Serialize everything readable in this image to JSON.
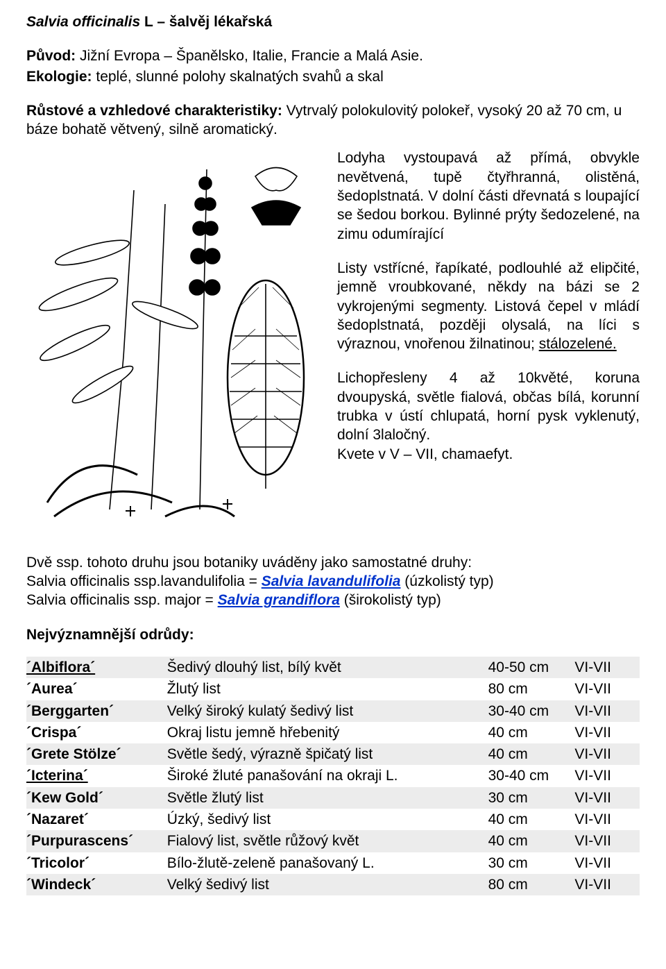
{
  "title": {
    "latin": "Salvia officinalis",
    "authority": "L",
    "czech": "šalvěj lékařská"
  },
  "origin": {
    "label": "Původ:",
    "text": "Jižní Evropa – Španělsko, Italie, Francie a Malá Asie."
  },
  "ecology": {
    "label": "Ekologie:",
    "text": "teplé, slunné polohy skalnatých svahů a skal"
  },
  "growth": {
    "label": "Růstové a vzhledové charakteristiky:",
    "text": "Vytrvalý polokulovitý polokeř, vysoký 20 až 70 cm, u báze bohatě větvený, silně aromatický."
  },
  "description": {
    "p1": "Lodyha vystoupavá až přímá, obvykle nevětvená, tupě čtyřhranná, olistěná, šedoplstnatá. V dolní části dřevnatá s loupající se šedou borkou. Bylinné prýty šedozelené, na zimu odumírající",
    "p2a": "Listy vstřícné, řapíkaté, podlouhlé až elipčité, jemně vroubkované, někdy na bázi se 2 vykrojenými segmenty. Listová čepel v mládí šedoplstnatá, později olysalá, na líci s výraznou, vnořenou žilnatinou; ",
    "p2b": "stálozelené.",
    "p3": "Lichopřesleny 4 až 10květé, koruna dvoupyská, světle fialová, občas bílá, korunní trubka v ústí chlupatá, horní pysk vyklenutý, dolní 3laločný.",
    "p4": "Kvete v V – VII, chamaefyt."
  },
  "ssp": {
    "intro": "Dvě ssp. tohoto druhu jsou botaniky uváděny jako samostatné druhy:",
    "line1a": "Salvia officinalis ssp.lavandulifolia = ",
    "line1link": "Salvia lavandulifolia",
    "line1b": " (úzkolistý typ)",
    "line2a": "Salvia officinalis ssp. major = ",
    "line2link": "Salvia grandiflora",
    "line2b": " (širokolistý typ)"
  },
  "cultivars_label": "Nejvýznamnější odrůdy:",
  "table": {
    "rows": [
      {
        "name": "´Albiflora´",
        "link": true,
        "desc": "Šedivý dlouhý list, bílý květ",
        "height": "40-50 cm",
        "bloom": "VI-VII",
        "shade": true
      },
      {
        "name": "´Aurea´",
        "link": false,
        "desc": "Žlutý list",
        "height": "80 cm",
        "bloom": "VI-VII",
        "shade": false
      },
      {
        "name": "´Berggarten´",
        "link": false,
        "desc": "Velký široký kulatý šedivý list",
        "height": "30-40 cm",
        "bloom": "VI-VII",
        "shade": true
      },
      {
        "name": "´Crispa´",
        "link": false,
        "desc": "Okraj listu jemně hřebenitý",
        "height": "40 cm",
        "bloom": "VI-VII",
        "shade": false
      },
      {
        "name": "´Grete Stölze´",
        "link": false,
        "desc": "Světle šedý, výrazně špičatý list",
        "height": "40 cm",
        "bloom": "VI-VII",
        "shade": true
      },
      {
        "name": "´Icterina´",
        "link": true,
        "desc": "Široké žluté panašování na okraji L.",
        "height": "30-40 cm",
        "bloom": "VI-VII",
        "shade": false
      },
      {
        "name": "´Kew Gold´",
        "link": false,
        "desc": "Světle žlutý list",
        "height": "30 cm",
        "bloom": "VI-VII",
        "shade": true
      },
      {
        "name": "´Nazaret´",
        "link": false,
        "desc": "Úzký, šedivý list",
        "height": "40 cm",
        "bloom": "VI-VII",
        "shade": false
      },
      {
        "name": "´Purpurascens´",
        "link": false,
        "desc": "Fialový list, světle růžový květ",
        "height": "40 cm",
        "bloom": "VI-VII",
        "shade": true
      },
      {
        "name": "´Tricolor´",
        "link": false,
        "desc": "Bílo-žlutě-zeleně panašovaný L.",
        "height": "30 cm",
        "bloom": "VI-VII",
        "shade": false
      },
      {
        "name": "´Windeck´",
        "link": false,
        "desc": "Velký šedivý list",
        "height": "80 cm",
        "bloom": "VI-VII",
        "shade": true
      }
    ]
  },
  "colors": {
    "shade_bg": "#ececec",
    "link_color": "#0033cc"
  }
}
